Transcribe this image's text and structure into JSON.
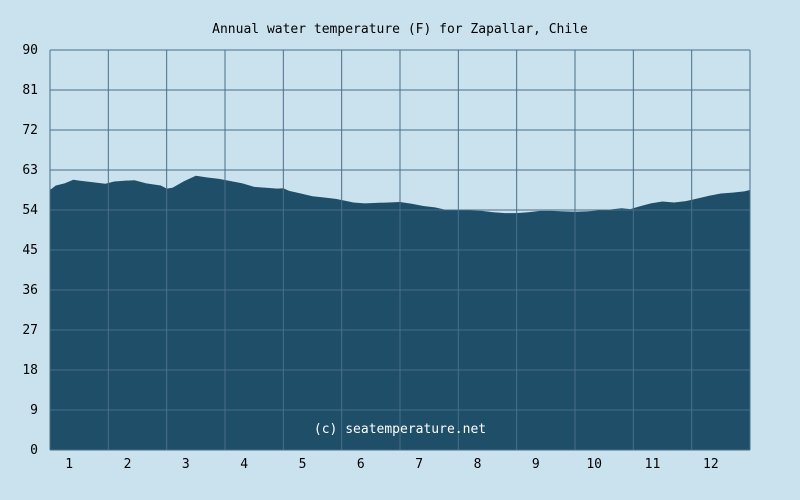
{
  "colors": {
    "background": "#c9e2ee",
    "area_fill": "#1f4e69",
    "grid": "#4a6f88",
    "text": "#000000",
    "watermark": "#ffffff"
  },
  "chart_data": {
    "type": "area",
    "title": "Annual water temperature (F) for Zapallar, Chile",
    "xlabel": "",
    "ylabel": "",
    "watermark": "(c) seatemperature.net",
    "categories": [
      "1",
      "2",
      "3",
      "4",
      "5",
      "6",
      "7",
      "8",
      "9",
      "10",
      "11",
      "12"
    ],
    "xlim": [
      0.5,
      12.5
    ],
    "ylim": [
      0,
      90
    ],
    "yticks": [
      0,
      9,
      18,
      27,
      36,
      45,
      54,
      63,
      72,
      81,
      90
    ],
    "grid": true,
    "legend": "none",
    "series": [
      {
        "x": [
          0.5,
          0.6,
          0.75,
          0.9,
          1.0,
          1.2,
          1.45,
          1.6,
          1.8,
          1.95,
          2.15,
          2.4,
          2.5,
          2.6,
          2.8,
          3.0,
          3.2,
          3.4,
          3.6,
          3.8,
          4.0,
          4.2,
          4.4,
          4.5,
          4.6,
          4.8,
          5.0,
          5.2,
          5.4,
          5.55,
          5.7,
          5.9,
          6.1,
          6.3,
          6.5,
          6.7,
          6.9,
          7.1,
          7.3,
          7.5,
          7.7,
          7.9,
          8.1,
          8.3,
          8.5,
          8.7,
          8.9,
          9.1,
          9.3,
          9.5,
          9.7,
          9.9,
          10.1,
          10.3,
          10.45,
          10.6,
          10.8,
          11.0,
          11.2,
          11.4,
          11.6,
          11.8,
          12.0,
          12.2,
          12.4,
          12.5
        ],
        "y": [
          58.5,
          59.5,
          60.0,
          60.8,
          60.6,
          60.3,
          59.9,
          60.4,
          60.6,
          60.7,
          60.0,
          59.5,
          58.8,
          59.0,
          60.5,
          61.7,
          61.3,
          61.0,
          60.5,
          60.0,
          59.2,
          59.0,
          58.8,
          58.9,
          58.3,
          57.7,
          57.1,
          56.8,
          56.5,
          56.1,
          55.7,
          55.5,
          55.6,
          55.7,
          55.8,
          55.4,
          54.9,
          54.6,
          54.0,
          54.0,
          53.9,
          53.8,
          53.5,
          53.3,
          53.3,
          53.5,
          53.8,
          53.8,
          53.7,
          53.6,
          53.7,
          53.9,
          54.1,
          54.4,
          54.2,
          54.8,
          55.5,
          55.9,
          55.7,
          56.0,
          56.6,
          57.2,
          57.7,
          57.9,
          58.2,
          58.5
        ]
      }
    ]
  }
}
